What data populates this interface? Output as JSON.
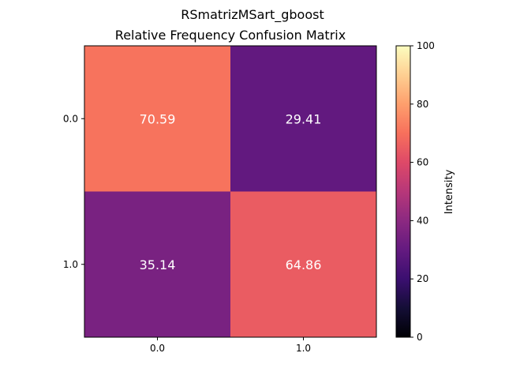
{
  "figure": {
    "suptitle": "RSmatrizMSart_gboost"
  },
  "chart_data": {
    "type": "heatmap",
    "title": "Relative Frequency Confusion Matrix",
    "x_categories": [
      "0.0",
      "1.0"
    ],
    "y_categories": [
      "0.0",
      "1.0"
    ],
    "values": [
      [
        70.59,
        29.41
      ],
      [
        35.14,
        64.86
      ]
    ],
    "cell_labels": [
      [
        "70.59",
        "29.41"
      ],
      [
        "35.14",
        "64.86"
      ]
    ],
    "colormap": "magma",
    "colorbar": {
      "label": "Intensity",
      "range": [
        0,
        100
      ],
      "ticks": [
        "0",
        "20",
        "40",
        "60",
        "80",
        "100"
      ]
    },
    "cell_label_color": "#ffffff",
    "grid": false
  }
}
